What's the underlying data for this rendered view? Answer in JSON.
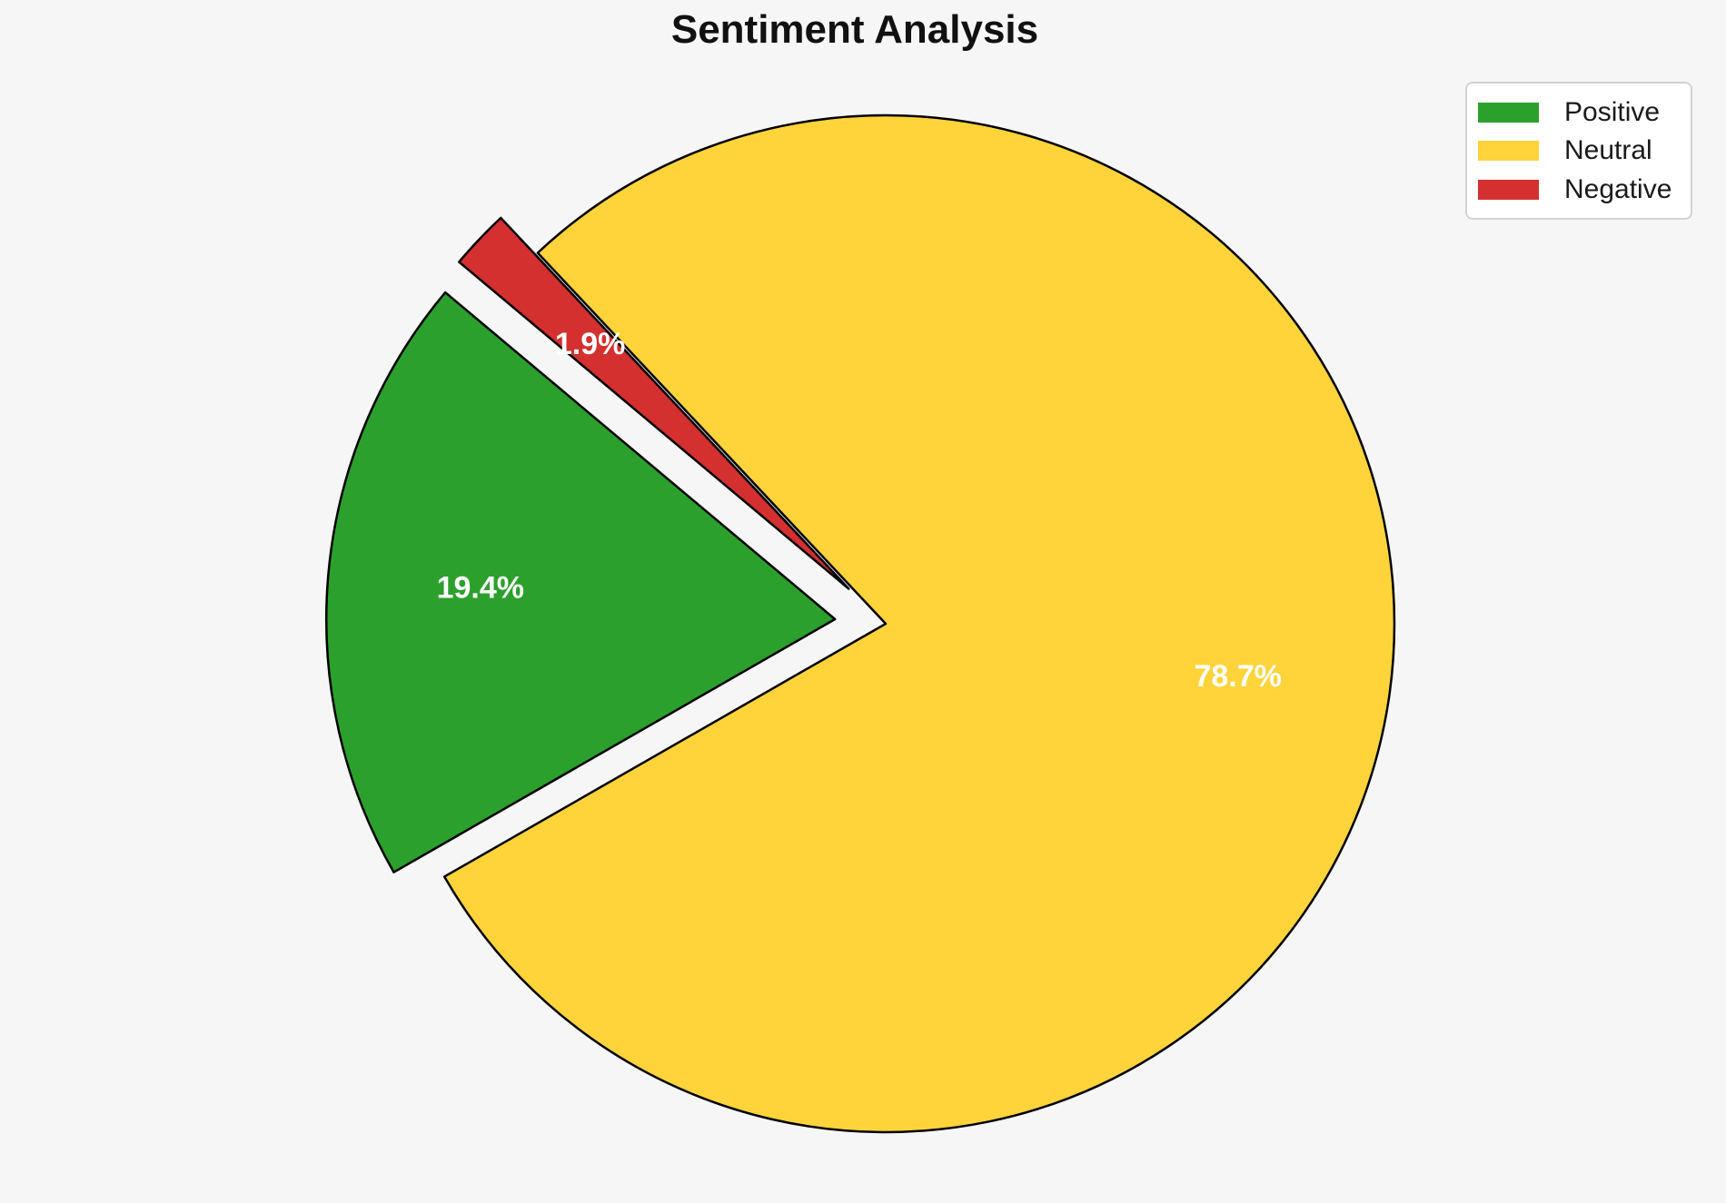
{
  "title": "Sentiment Analysis",
  "chart_data": {
    "type": "pie",
    "title": "Sentiment Analysis",
    "categories": [
      "Positive",
      "Neutral",
      "Negative"
    ],
    "values": [
      19.4,
      78.7,
      1.9
    ],
    "value_labels": [
      "19.4%",
      "78.7%",
      "1.9%"
    ],
    "colors": [
      "#2CA02C",
      "#FFD43B",
      "#D3302F"
    ],
    "explode": [
      0.1,
      0,
      0.1
    ],
    "start_angle": 140,
    "direction": "counterclockwise",
    "pct_distance": 0.7,
    "label_color": "#ffffff",
    "edge_color": "#000000",
    "background": "#f6f6f7",
    "legend": {
      "position": "upper right",
      "entries": [
        {
          "label": "Positive",
          "color": "#2CA02C"
        },
        {
          "label": "Neutral",
          "color": "#FFD43B"
        },
        {
          "label": "Negative",
          "color": "#D3302F"
        }
      ]
    }
  }
}
